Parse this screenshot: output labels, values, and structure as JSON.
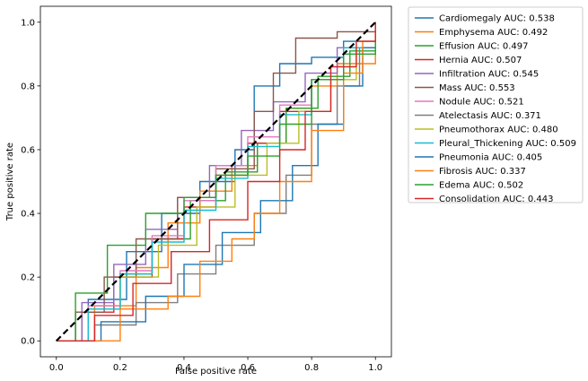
{
  "chart_data": {
    "type": "line",
    "title": "",
    "xlabel": "False positive rate",
    "ylabel": "True positive rate",
    "xlim": [
      -0.05,
      1.05
    ],
    "ylim": [
      -0.05,
      1.05
    ],
    "xticks": [
      "0.0",
      "0.2",
      "0.4",
      "0.6",
      "0.8",
      "1.0"
    ],
    "yticks": [
      "0.0",
      "0.2",
      "0.4",
      "0.6",
      "0.8",
      "1.0"
    ],
    "grid": false,
    "legend_position": "outside-right-top",
    "diagonal": {
      "label": "",
      "color": "#000000",
      "style": "dashed",
      "x": [
        0,
        1
      ],
      "y": [
        0,
        1
      ]
    },
    "series": [
      {
        "name": "Cardiomegaly AUC: 0.538",
        "color": "#1f77b4",
        "x": [
          0,
          0.1,
          0.22,
          0.33,
          0.45,
          0.56,
          0.62,
          0.7,
          0.8,
          0.9,
          1.0
        ],
        "y": [
          0,
          0.13,
          0.28,
          0.4,
          0.5,
          0.6,
          0.8,
          0.87,
          0.89,
          0.94,
          1.0
        ]
      },
      {
        "name": "Emphysema AUC: 0.492",
        "color": "#ff7f0e",
        "x": [
          0,
          0.12,
          0.25,
          0.35,
          0.45,
          0.55,
          0.63,
          0.72,
          0.8,
          0.88,
          1.0
        ],
        "y": [
          0,
          0.11,
          0.23,
          0.37,
          0.47,
          0.55,
          0.62,
          0.73,
          0.8,
          0.87,
          1.0
        ]
      },
      {
        "name": "Effusion AUC: 0.497",
        "color": "#2ca02c",
        "x": [
          0,
          0.1,
          0.2,
          0.3,
          0.42,
          0.53,
          0.63,
          0.72,
          0.82,
          0.92,
          1.0
        ],
        "y": [
          0,
          0.1,
          0.21,
          0.32,
          0.44,
          0.53,
          0.62,
          0.73,
          0.83,
          0.91,
          1.0
        ]
      },
      {
        "name": "Hernia AUC: 0.507",
        "color": "#d62728",
        "x": [
          0,
          0.08,
          0.18,
          0.3,
          0.4,
          0.5,
          0.6,
          0.7,
          0.8,
          0.9,
          1.0
        ],
        "y": [
          0,
          0.09,
          0.2,
          0.32,
          0.42,
          0.52,
          0.62,
          0.72,
          0.82,
          0.92,
          1.0
        ]
      },
      {
        "name": "Infiltration AUC: 0.545",
        "color": "#9467bd",
        "x": [
          0,
          0.08,
          0.18,
          0.28,
          0.38,
          0.48,
          0.58,
          0.68,
          0.78,
          0.88,
          1.0
        ],
        "y": [
          0,
          0.12,
          0.24,
          0.35,
          0.45,
          0.55,
          0.66,
          0.75,
          0.84,
          0.92,
          1.0
        ]
      },
      {
        "name": "Mass AUC: 0.553",
        "color": "#8c564b",
        "x": [
          0,
          0.06,
          0.15,
          0.25,
          0.38,
          0.5,
          0.62,
          0.68,
          0.75,
          0.88,
          1.0
        ],
        "y": [
          0,
          0.09,
          0.2,
          0.32,
          0.45,
          0.54,
          0.72,
          0.84,
          0.95,
          0.97,
          1.0
        ]
      },
      {
        "name": "Nodule AUC: 0.521",
        "color": "#e377c2",
        "x": [
          0,
          0.1,
          0.2,
          0.3,
          0.4,
          0.5,
          0.6,
          0.7,
          0.8,
          0.9,
          1.0
        ],
        "y": [
          0,
          0.11,
          0.22,
          0.33,
          0.44,
          0.55,
          0.64,
          0.74,
          0.82,
          0.92,
          1.0
        ]
      },
      {
        "name": "Atelectasis AUC: 0.371",
        "color": "#7f7f7f",
        "x": [
          0,
          0.12,
          0.25,
          0.38,
          0.5,
          0.62,
          0.72,
          0.8,
          0.88,
          0.95,
          1.0
        ],
        "y": [
          0,
          0.05,
          0.12,
          0.21,
          0.3,
          0.4,
          0.52,
          0.68,
          0.8,
          0.92,
          1.0
        ]
      },
      {
        "name": "Pneumothorax AUC: 0.480",
        "color": "#bcbd22",
        "x": [
          0,
          0.1,
          0.2,
          0.32,
          0.44,
          0.56,
          0.66,
          0.76,
          0.86,
          0.94,
          1.0
        ],
        "y": [
          0,
          0.1,
          0.2,
          0.3,
          0.42,
          0.52,
          0.62,
          0.72,
          0.82,
          0.92,
          1.0
        ]
      },
      {
        "name": "Pleural_Thickening AUC: 0.509",
        "color": "#17becf",
        "x": [
          0,
          0.1,
          0.2,
          0.3,
          0.4,
          0.5,
          0.6,
          0.7,
          0.8,
          0.9,
          1.0
        ],
        "y": [
          0,
          0.1,
          0.21,
          0.31,
          0.41,
          0.51,
          0.61,
          0.71,
          0.82,
          0.92,
          1.0
        ]
      },
      {
        "name": "Pneumonia AUC: 0.405",
        "color": "#1f77b4",
        "x": [
          0,
          0.14,
          0.28,
          0.4,
          0.52,
          0.64,
          0.74,
          0.82,
          0.9,
          0.96,
          1.0
        ],
        "y": [
          0,
          0.06,
          0.14,
          0.24,
          0.34,
          0.44,
          0.55,
          0.68,
          0.8,
          0.92,
          1.0
        ]
      },
      {
        "name": "Fibrosis AUC: 0.337",
        "color": "#ff7f0e",
        "x": [
          0,
          0.1,
          0.2,
          0.35,
          0.45,
          0.55,
          0.62,
          0.7,
          0.8,
          0.9,
          0.96,
          1.0
        ],
        "y": [
          0,
          0,
          0.1,
          0.14,
          0.25,
          0.32,
          0.4,
          0.5,
          0.66,
          0.84,
          0.94,
          1.0
        ]
      },
      {
        "name": "Edema AUC: 0.502",
        "color": "#2ca02c",
        "x": [
          0,
          0.06,
          0.16,
          0.28,
          0.4,
          0.5,
          0.6,
          0.7,
          0.8,
          0.9,
          1.0
        ],
        "y": [
          0,
          0.15,
          0.3,
          0.4,
          0.45,
          0.52,
          0.58,
          0.68,
          0.82,
          0.9,
          1.0
        ]
      },
      {
        "name": "Consolidation AUC: 0.443",
        "color": "#d62728",
        "x": [
          0,
          0.12,
          0.24,
          0.36,
          0.48,
          0.6,
          0.7,
          0.78,
          0.86,
          0.94,
          1.0
        ],
        "y": [
          0,
          0.08,
          0.18,
          0.28,
          0.38,
          0.5,
          0.6,
          0.72,
          0.86,
          0.94,
          1.0
        ]
      }
    ]
  }
}
